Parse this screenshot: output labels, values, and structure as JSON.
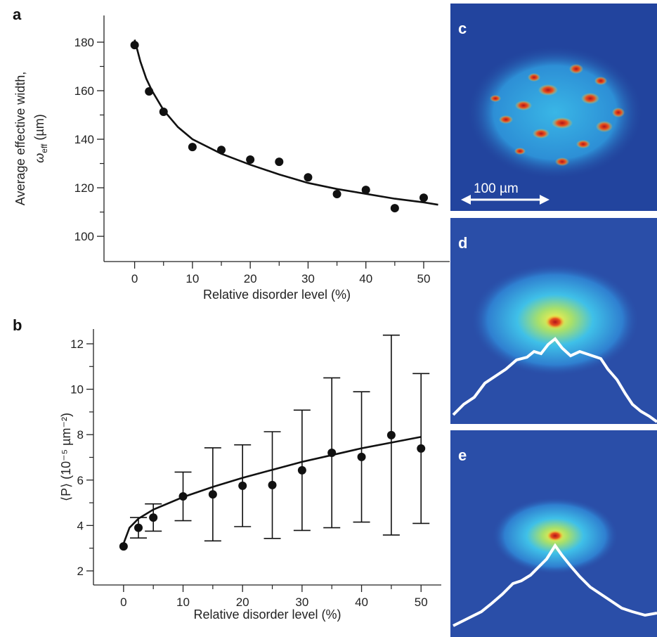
{
  "chart_data": [
    {
      "type": "scatter",
      "panel": "a",
      "x_label": "Relative disorder level (%)",
      "y_label": "Average effective width,",
      "y_label_symbol": "ω",
      "y_label_subscript": "eff",
      "y_label_unit": "(µm)",
      "x": [
        0,
        2.5,
        5,
        10,
        15,
        20,
        25,
        30,
        35,
        40,
        45,
        50
      ],
      "series": [
        {
          "color": "#111111",
          "values": [
            178.8,
            159.7,
            151.3,
            136.8,
            135.6,
            131.6,
            130.7,
            124.3,
            117.4,
            119.1,
            111.6,
            115.9
          ]
        }
      ],
      "fit": {
        "color": "#111111",
        "x": [
          0,
          1,
          2,
          3,
          5,
          7.5,
          10,
          15,
          20,
          25,
          30,
          35,
          40,
          45,
          50,
          52.5
        ],
        "values": [
          181,
          172,
          165,
          160,
          152,
          145,
          140,
          134,
          129.5,
          125.5,
          122,
          119.5,
          117.5,
          115.5,
          114,
          113
        ]
      },
      "xlim": [
        -5.3,
        54.5
      ],
      "ylim": [
        89.6,
        191
      ],
      "xticks": [
        0,
        10,
        20,
        30,
        40,
        50
      ],
      "yticks": [
        100,
        120,
        140,
        160,
        180
      ],
      "minor_xticks": [
        5,
        15,
        25,
        35,
        45
      ],
      "minor_yticks": [
        110,
        130,
        150,
        170
      ]
    },
    {
      "type": "scatter",
      "panel": "b",
      "x_label": "Relative disorder level (%)",
      "y_label": "⟨P⟩ (10⁻⁵ µm⁻²)",
      "x": [
        0,
        2.5,
        5,
        10,
        15,
        20,
        25,
        30,
        35,
        40,
        45,
        50
      ],
      "series": [
        {
          "color": "#111111",
          "values": [
            3.08,
            3.9,
            4.35,
            5.28,
            5.37,
            5.75,
            5.78,
            6.43,
            7.2,
            7.02,
            7.98,
            7.39
          ],
          "errors": [
            null,
            0.45,
            0.6,
            1.07,
            2.05,
            1.8,
            2.35,
            2.65,
            3.3,
            2.87,
            4.4,
            3.3
          ]
        }
      ],
      "fit": {
        "color": "#111111",
        "x": [
          0,
          1,
          2.5,
          5,
          10,
          15,
          20,
          25,
          30,
          35,
          40,
          45,
          50
        ],
        "values": [
          3.2,
          3.9,
          4.3,
          4.7,
          5.25,
          5.7,
          6.1,
          6.45,
          6.8,
          7.1,
          7.4,
          7.65,
          7.9
        ]
      },
      "xlim": [
        -5.06,
        53.4
      ],
      "ylim": [
        1.38,
        12.65
      ],
      "xticks": [
        0,
        10,
        20,
        30,
        40,
        50
      ],
      "yticks": [
        2,
        4,
        6,
        8,
        10,
        12
      ],
      "minor_xticks": [
        5,
        15,
        25,
        35,
        45
      ],
      "minor_yticks": [
        3,
        5,
        7,
        9,
        11
      ]
    }
  ],
  "images": [
    {
      "label": "c",
      "scale_bar": "100 µm"
    },
    {
      "label": "d"
    },
    {
      "label": "e"
    }
  ]
}
